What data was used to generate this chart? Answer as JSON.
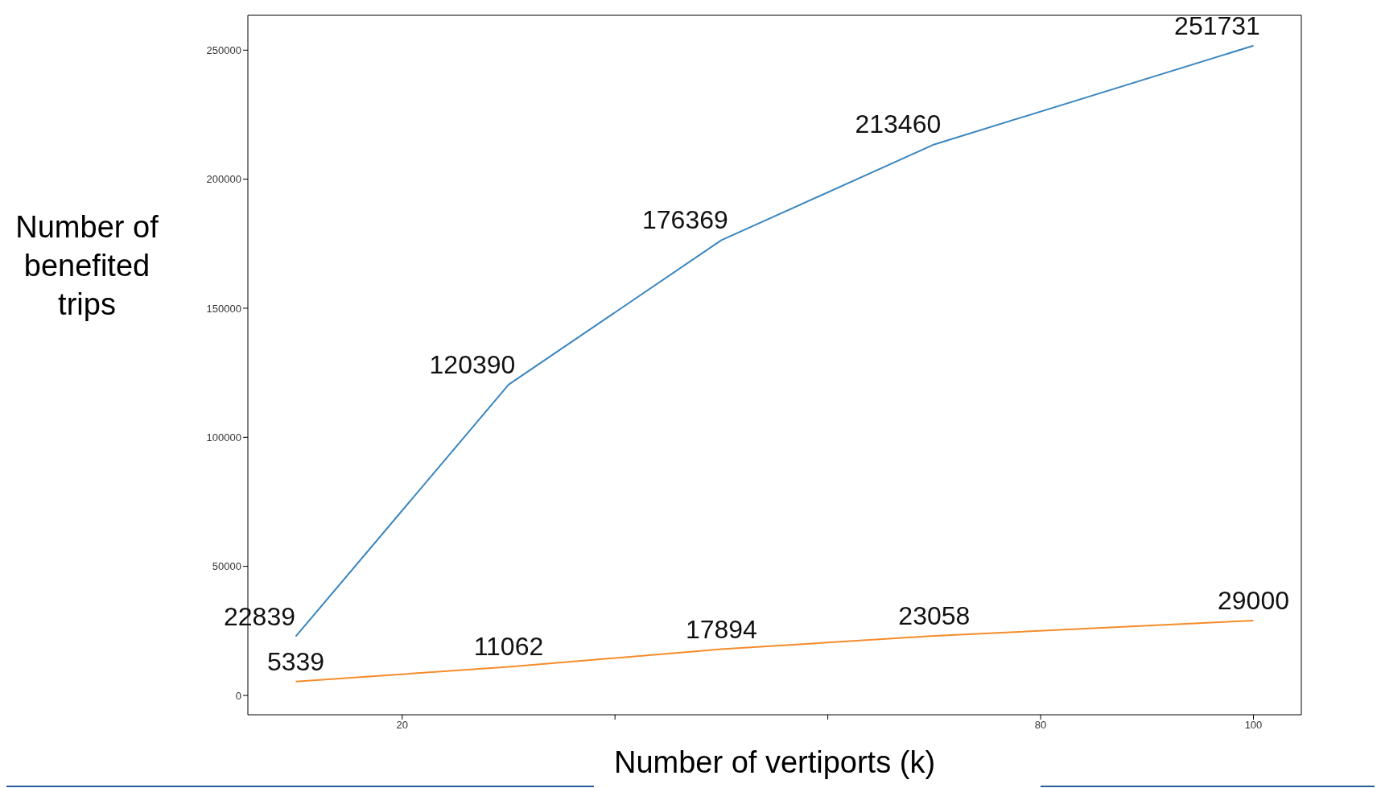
{
  "chart_data": {
    "type": "line",
    "xlabel": "Number of vertiports (k)",
    "ylabel": "Number of benefited trips",
    "x": [
      10,
      30,
      50,
      70,
      100
    ],
    "series": [
      {
        "color": "#3a86c0",
        "values": [
          22839,
          120390,
          176369,
          213460,
          251731
        ]
      },
      {
        "color": "#f68b2a",
        "values": [
          5339,
          11062,
          17894,
          23058,
          29000
        ]
      }
    ],
    "xlim": [
      5.5,
      104.5
    ],
    "xticks": [
      20,
      {
        "value": 40,
        "label": null
      },
      {
        "value": 60,
        "label": null
      },
      80,
      100
    ],
    "ylim": [
      -7500,
      263500
    ],
    "yticks": [
      0,
      50000,
      100000,
      150000,
      200000,
      250000
    ],
    "data_labels": true,
    "grid": false,
    "legend": false,
    "marker": "none",
    "line_style": "solid"
  }
}
